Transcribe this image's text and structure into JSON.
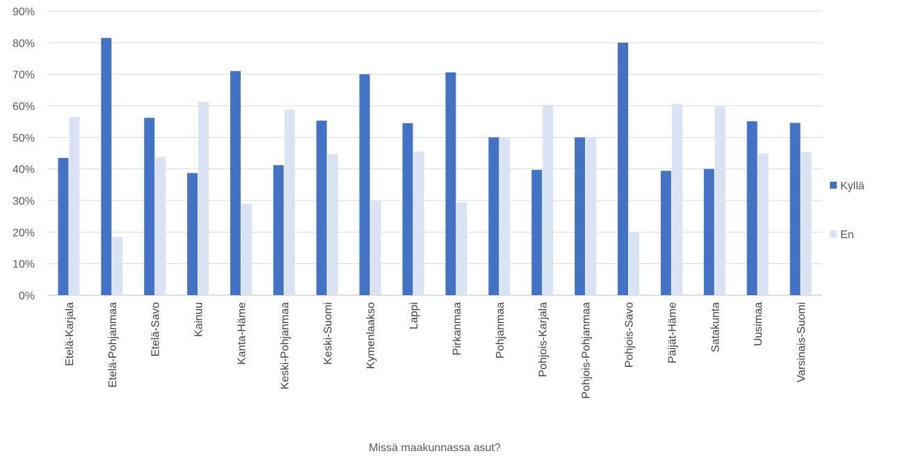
{
  "colors": {
    "kylla": "#4472C4",
    "en": "#DAE3F3",
    "grid": "#D9D9D9",
    "axis": "#BFBFBF"
  },
  "chart_data": {
    "type": "bar",
    "xlabel": "Missä maakunnassa asut?",
    "ylabel": "",
    "ylim": [
      0,
      90
    ],
    "ytick_step": 10,
    "ytick_suffix": "%",
    "grid": true,
    "legend_position": "right",
    "categories": [
      "Etelä-Karjala",
      "Etelä-Pohjanmaa",
      "Etelä-Savo",
      "Kainuu",
      "Kanta-Häme",
      "Keski-Pohjanmaa",
      "Keski-Suomi",
      "Kymenlaakso",
      "Lappi",
      "Pirkanmaa",
      "Pohjanmaa",
      "Pohjois-Karjala",
      "Pohjois-Pohjanmaa",
      "Pohjois-Savo",
      "Päijät-Häme",
      "Satakunta",
      "Uusimaa",
      "Varsinais-Suomi"
    ],
    "series": [
      {
        "name": "Kyllä",
        "color": "#4472C4",
        "values": [
          43.5,
          81.5,
          56.2,
          38.7,
          71.0,
          41.2,
          55.3,
          70.0,
          54.5,
          70.6,
          50.0,
          39.7,
          50.0,
          80.0,
          39.4,
          40.0,
          55.1,
          54.6
        ]
      },
      {
        "name": "En",
        "color": "#DAE3F3",
        "values": [
          56.5,
          18.5,
          43.8,
          61.3,
          29.0,
          58.8,
          44.7,
          30.0,
          45.5,
          29.4,
          50.0,
          60.3,
          50.0,
          20.0,
          60.6,
          60.0,
          44.9,
          45.4
        ]
      }
    ]
  }
}
